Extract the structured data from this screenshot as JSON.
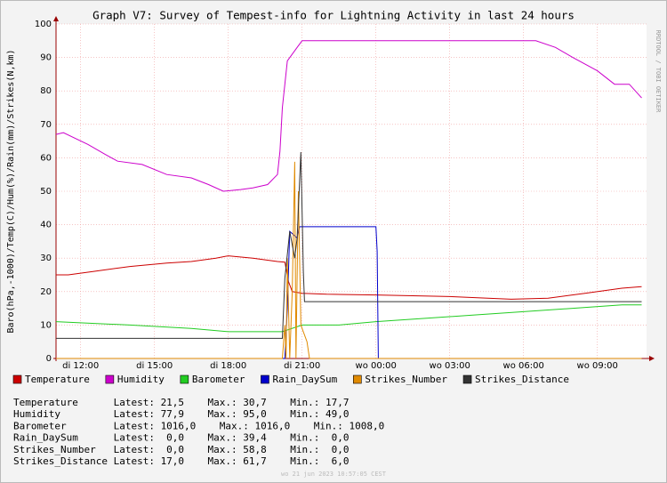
{
  "chart_data": {
    "type": "line",
    "title": "Graph V7: Survey of Tempest-info for Lightning Activity in last 24 hours",
    "ylabel": "Baro(hPa,-1000)/Temp(C)/Hum(%)/Rain(mm)/Strikes(N,km)",
    "xlim": [
      11,
      35
    ],
    "xticks": [
      {
        "value": 12,
        "label": "di 12:00"
      },
      {
        "value": 15,
        "label": "di 15:00"
      },
      {
        "value": 18,
        "label": "di 18:00"
      },
      {
        "value": 21,
        "label": "di 21:00"
      },
      {
        "value": 24,
        "label": "wo 00:00"
      },
      {
        "value": 27,
        "label": "wo 03:00"
      },
      {
        "value": 30,
        "label": "wo 06:00"
      },
      {
        "value": 33,
        "label": "wo 09:00"
      }
    ],
    "ylim": [
      0,
      100
    ],
    "yticks": [
      0,
      10,
      20,
      30,
      40,
      50,
      60,
      70,
      80,
      90,
      100
    ],
    "grid": true,
    "series": [
      {
        "name": "Temperature",
        "color": "#cc0000",
        "x": [
          11,
          11.5,
          12.5,
          14,
          15.5,
          16.5,
          17.5,
          18,
          19,
          20,
          20.3,
          20.45,
          20.6,
          21,
          22,
          24,
          27,
          29.5,
          31,
          32.5,
          34,
          34.8
        ],
        "values": [
          25,
          25,
          26,
          27.5,
          28.5,
          29,
          30,
          30.7,
          30,
          29,
          28.8,
          23,
          20,
          19.5,
          19.2,
          19,
          18.5,
          17.7,
          18,
          19.5,
          21,
          21.5
        ]
      },
      {
        "name": "Humidity",
        "color": "#cc00cc",
        "x": [
          11,
          11.3,
          12.3,
          13,
          13.5,
          14.5,
          15.5,
          16.5,
          17.2,
          17.8,
          18.5,
          19,
          19.6,
          20,
          20.1,
          20.2,
          20.4,
          20.8,
          21,
          30.5,
          31.3,
          32,
          33,
          33.7,
          34.3,
          34.8
        ],
        "values": [
          67,
          67.5,
          64,
          61,
          59,
          58,
          55,
          54,
          52,
          50,
          50.5,
          51,
          52,
          55,
          62,
          75,
          89,
          93,
          95,
          95,
          93,
          90,
          86,
          82,
          82,
          77.9
        ]
      },
      {
        "name": "Barometer",
        "color": "#22cc22",
        "x": [
          11,
          14,
          16.5,
          18,
          20.2,
          21,
          22.5,
          24,
          26,
          28,
          30,
          32,
          34,
          34.8
        ],
        "values": [
          11,
          10,
          9,
          8,
          8,
          10,
          10,
          11,
          12,
          13,
          14,
          15,
          16,
          16
        ]
      },
      {
        "name": "Rain_DaySum",
        "color": "#0000cc",
        "x": [
          11,
          20.3,
          20.4,
          20.5,
          20.8,
          20.9,
          24,
          24.05,
          24.1,
          34.8
        ],
        "values": [
          0,
          0,
          15,
          38,
          36,
          39.4,
          39.4,
          32,
          0,
          0
        ]
      },
      {
        "name": "Strikes_Number",
        "color": "#e08a00",
        "x": [
          11,
          20.2,
          20.3,
          20.35,
          20.4,
          20.5,
          20.6,
          20.7,
          20.75,
          20.85,
          20.95,
          21.2,
          21.3,
          34.8
        ],
        "values": [
          0,
          0,
          10,
          0,
          30,
          0,
          20,
          58.8,
          0,
          50,
          10,
          5,
          0,
          0
        ]
      },
      {
        "name": "Strikes_Distance",
        "color": "#333333",
        "x": [
          11,
          20.2,
          20.3,
          20.5,
          20.7,
          20.8,
          20.95,
          21.05,
          21.1,
          34.8
        ],
        "values": [
          6,
          6,
          24,
          38,
          30,
          36,
          61.7,
          26,
          17,
          17
        ]
      }
    ]
  },
  "stats": [
    "Temperature      Latest: 21,5    Max.: 30,7    Min.: 17,7",
    "Humidity         Latest: 77,9    Max.: 95,0    Min.: 49,0",
    "Barometer        Latest: 1016,0    Max.: 1016,0    Min.: 1008,0",
    "Rain_DaySum      Latest:  0,0    Max.: 39,4    Min.:  0,0",
    "Strikes_Number   Latest:  0,0    Max.: 58,8    Min.:  0,0",
    "Strikes_Distance Latest: 17,0    Max.: 61,7    Min.:  6,0"
  ],
  "timestamp": "wo 21 jun 2023 10:57:05 CEST",
  "watermark": "RRDTOOL / TOBI OETIKER"
}
